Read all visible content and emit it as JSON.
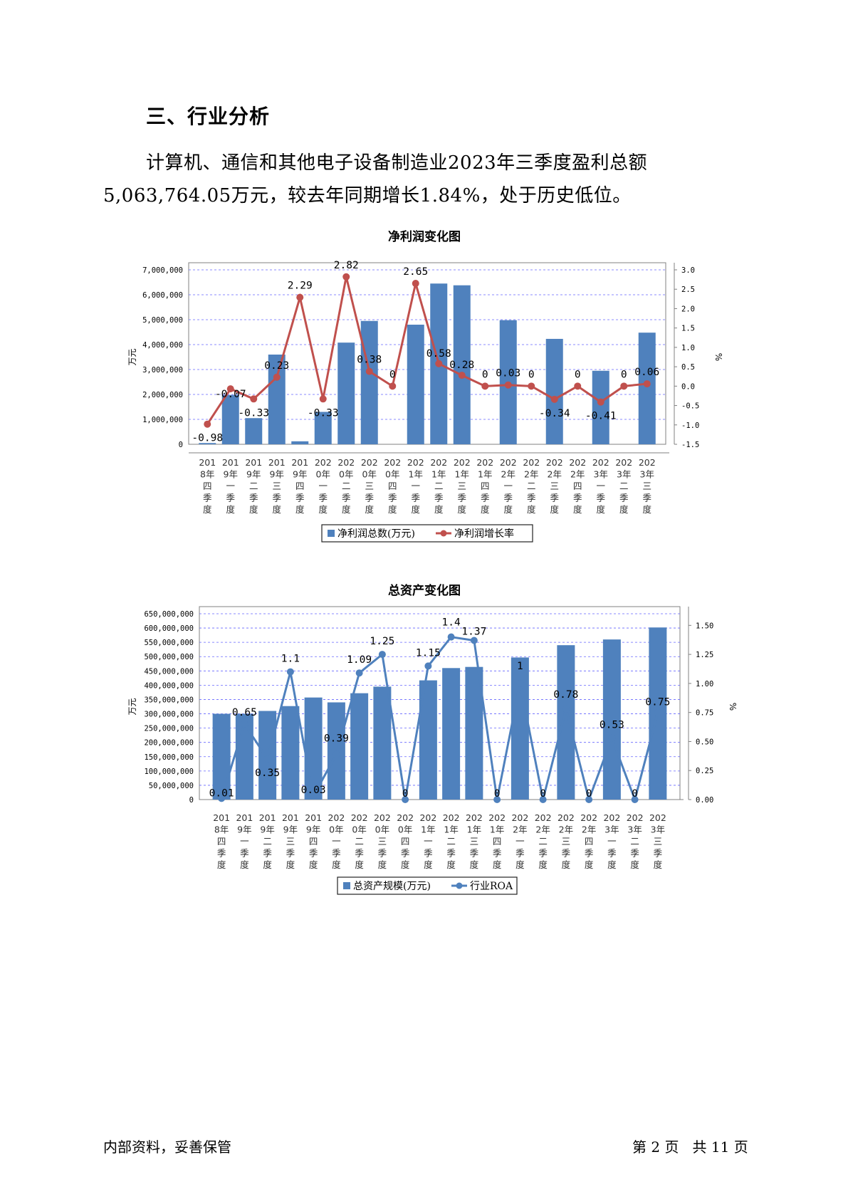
{
  "section_heading": "三、行业分析",
  "paragraph": "计算机、通信和其他电子设备制造业2023年三季度盈利总额5,063,764.05万元，较去年同期增长1.84%，处于历史低位。",
  "footer": {
    "left": "内部资料，妥善保管",
    "page_prefix": "第",
    "page_num": "2",
    "page_mid": "页",
    "total_prefix": "共",
    "total_num": "11",
    "total_suffix": "页"
  },
  "colors": {
    "bar": "#4f81bd",
    "profit_line": "#c0504d",
    "roa_line": "#4f81bd",
    "grid": "#6666ff"
  },
  "chart_data": [
    {
      "type": "bar+line",
      "title": "净利润变化图",
      "ylabel": "万元",
      "y2label": "%",
      "categories": [
        "2018年四季度",
        "2019年一季度",
        "2019年二季度",
        "2019年三季度",
        "2019年四季度",
        "2020年一季度",
        "2020年二季度",
        "2020年三季度",
        "2020年四季度",
        "2021年一季度",
        "2021年二季度",
        "2021年三季度",
        "2021年四季度",
        "2022年一季度",
        "2022年二季度",
        "2022年三季度",
        "2022年四季度",
        "2023年一季度",
        "2023年二季度",
        "2023年三季度"
      ],
      "y_ticks": [
        "0",
        "1,000,000",
        "2,000,000",
        "3,000,000",
        "4,000,000",
        "5,000,000",
        "6,000,000",
        "7,000,000"
      ],
      "ylim": [
        0,
        7000000
      ],
      "y2_ticks": [
        "-1.5",
        "-1.0",
        "-0.5",
        "0.0",
        "0.5",
        "1.0",
        "1.5",
        "2.0",
        "2.5",
        "3.0"
      ],
      "y2lim": [
        -1.5,
        3.0
      ],
      "series": [
        {
          "name": "净利润总数(万元)",
          "kind": "bar",
          "values": [
            50000,
            1980000,
            1050000,
            3600000,
            120000,
            1300000,
            4080000,
            4950000,
            0,
            4800000,
            6450000,
            6380000,
            0,
            4980000,
            0,
            4230000,
            0,
            2950000,
            0,
            4480000
          ]
        },
        {
          "name": "净利润增长率",
          "kind": "line",
          "axis": "right",
          "values": [
            -0.98,
            -0.07,
            -0.33,
            0.23,
            2.29,
            -0.33,
            2.82,
            0.38,
            0,
            2.65,
            0.58,
            0.28,
            0,
            0.03,
            0,
            -0.34,
            0,
            -0.41,
            0,
            0.06
          ],
          "labels": [
            "-0.98",
            "-0.07",
            "-0.33",
            "0.23",
            "2.29",
            "-0.33",
            "2.82",
            "0.38",
            "0",
            "2.65",
            "0.58",
            "0.28",
            "0",
            "0.03",
            "0",
            "-0.34",
            "0",
            "-0.41",
            "0",
            "0.06"
          ]
        }
      ],
      "legend": "bottom"
    },
    {
      "type": "bar+line",
      "title": "总资产变化图",
      "ylabel": "万元",
      "y2label": "%",
      "categories": [
        "2018年四季度",
        "2019年一季度",
        "2019年二季度",
        "2019年三季度",
        "2019年四季度",
        "2020年一季度",
        "2020年二季度",
        "2020年三季度",
        "2020年四季度",
        "2021年一季度",
        "2021年二季度",
        "2021年三季度",
        "2021年四季度",
        "2022年一季度",
        "2022年二季度",
        "2022年三季度",
        "2022年四季度",
        "2023年一季度",
        "2023年二季度",
        "2023年三季度"
      ],
      "y_ticks": [
        "0",
        "50,000,000",
        "100,000,000",
        "150,000,000",
        "200,000,000",
        "250,000,000",
        "300,000,000",
        "350,000,000",
        "400,000,000",
        "450,000,000",
        "500,000,000",
        "550,000,000",
        "600,000,000",
        "650,000,000"
      ],
      "ylim": [
        0,
        650000000
      ],
      "y2_ticks": [
        "0.00",
        "0.25",
        "0.50",
        "0.75",
        "1.00",
        "1.25",
        "1.50"
      ],
      "y2lim": [
        0,
        1.6
      ],
      "series": [
        {
          "name": "总资产规模(万元)",
          "kind": "bar",
          "values": [
            300000000,
            300000000,
            310000000,
            327000000,
            357000000,
            340000000,
            372000000,
            395000000,
            0,
            417000000,
            460000000,
            464000000,
            0,
            497000000,
            0,
            540000000,
            0,
            560000000,
            0,
            602000000
          ]
        },
        {
          "name": "行业ROA",
          "kind": "line",
          "axis": "right",
          "values": [
            0.01,
            0.65,
            0.35,
            1.1,
            0.03,
            0.39,
            1.09,
            1.25,
            0,
            1.15,
            1.4,
            1.37,
            0,
            1,
            0,
            0.78,
            0,
            0.53,
            0,
            0.75
          ],
          "labels": [
            "0.01",
            "0.65",
            "0.35",
            "1.1",
            "0.03",
            "0.39",
            "1.09",
            "1.25",
            "0",
            "1.15",
            "1.4",
            "1.37",
            "0",
            "1",
            "0",
            "0.78",
            "0",
            "0.53",
            "0",
            "0.75"
          ]
        }
      ],
      "legend": "bottom"
    }
  ]
}
